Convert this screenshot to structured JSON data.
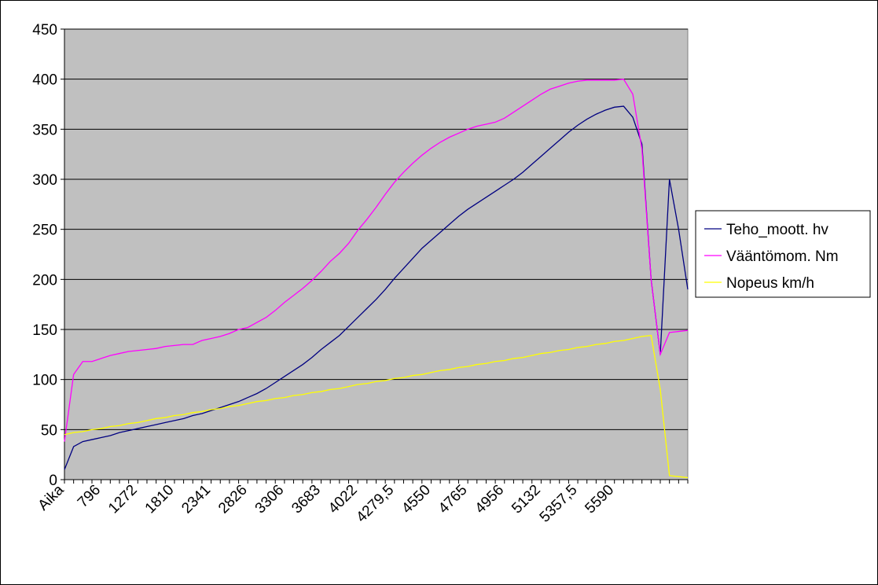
{
  "chart_data": {
    "type": "line",
    "categories": [
      "Aika",
      null,
      null,
      null,
      "796",
      null,
      null,
      null,
      "1272",
      null,
      null,
      null,
      "1810",
      null,
      null,
      null,
      "2341",
      null,
      null,
      null,
      "2826",
      null,
      null,
      null,
      "3306",
      null,
      null,
      null,
      "3683",
      null,
      null,
      null,
      "4022",
      null,
      null,
      null,
      "4279,5",
      null,
      null,
      null,
      "4550",
      null,
      null,
      null,
      "4765",
      null,
      null,
      null,
      "4956",
      null,
      null,
      null,
      "5132",
      null,
      null,
      null,
      "5357,5",
      null,
      null,
      null,
      "5590",
      null,
      null,
      null,
      null,
      null,
      null,
      null,
      null
    ],
    "series": [
      {
        "name": "Teho_moott. hv",
        "color": "#000080",
        "values": [
          10,
          33,
          38,
          40,
          42,
          44,
          47,
          49,
          51,
          53,
          55,
          57,
          59,
          61,
          64,
          66,
          69,
          72,
          75,
          78,
          82,
          86,
          91,
          97,
          103,
          109,
          115,
          122,
          130,
          137,
          144,
          153,
          162,
          171,
          180,
          190,
          201,
          211,
          221,
          231,
          239,
          247,
          255,
          263,
          270,
          276,
          282,
          288,
          294,
          300,
          307,
          315,
          323,
          331,
          339,
          347,
          354,
          360,
          365,
          369,
          372,
          373,
          362,
          335,
          200,
          125,
          300,
          250,
          190
        ]
      },
      {
        "name": "Vääntömom. Nm",
        "color": "#ff00ff",
        "values": [
          38,
          105,
          118,
          118,
          121,
          124,
          126,
          128,
          129,
          130,
          131,
          133,
          134,
          135,
          135,
          139,
          141,
          143,
          146,
          150,
          152,
          157,
          162,
          169,
          177,
          184,
          191,
          199,
          208,
          218,
          226,
          236,
          249,
          260,
          272,
          285,
          297,
          307,
          316,
          324,
          331,
          337,
          342,
          346,
          350,
          353,
          355,
          357,
          361,
          367,
          373,
          379,
          385,
          390,
          393,
          396,
          398,
          399,
          399,
          399,
          399,
          400,
          385,
          330,
          200,
          125,
          147,
          148,
          149
        ]
      },
      {
        "name": "Nopeus km/h",
        "color": "#ffff00",
        "values": [
          45,
          47,
          48,
          50,
          51,
          53,
          54,
          56,
          57,
          59,
          61,
          62,
          64,
          65,
          67,
          68,
          70,
          71,
          73,
          74,
          76,
          78,
          79,
          81,
          82,
          84,
          85,
          87,
          88,
          90,
          91,
          93,
          95,
          96,
          98,
          99,
          101,
          102,
          104,
          105,
          107,
          109,
          110,
          112,
          113,
          115,
          116,
          118,
          119,
          121,
          122,
          124,
          126,
          127,
          129,
          130,
          132,
          133,
          135,
          136,
          138,
          139,
          141,
          143,
          144,
          90,
          4,
          3,
          2
        ]
      }
    ],
    "ylim": [
      0,
      450
    ],
    "yticks": [
      0,
      50,
      100,
      150,
      200,
      250,
      300,
      350,
      400,
      450
    ],
    "grid": true,
    "legend": "right",
    "plot_background": "#c0c0c0"
  }
}
